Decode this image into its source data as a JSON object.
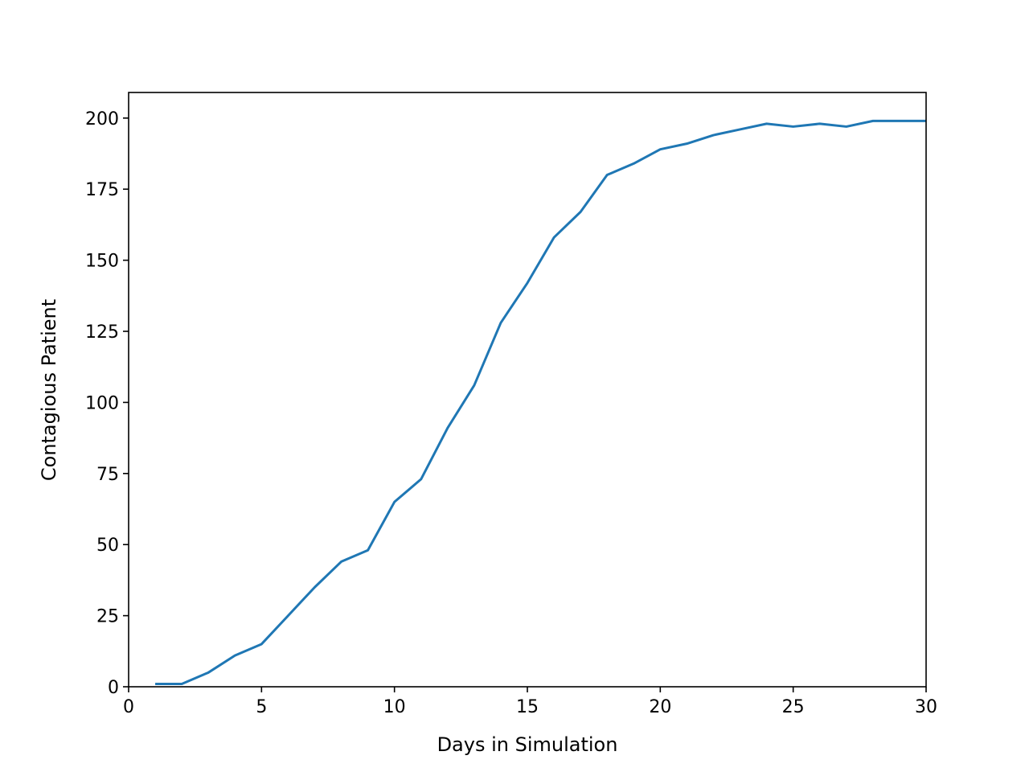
{
  "chart_data": {
    "type": "line",
    "title": "",
    "xlabel": "Days in Simulation",
    "ylabel": "Contagious Patient",
    "xlim": [
      0,
      30
    ],
    "ylim": [
      0,
      209
    ],
    "xticks": [
      0,
      5,
      10,
      15,
      20,
      25,
      30
    ],
    "yticks": [
      0,
      25,
      50,
      75,
      100,
      125,
      150,
      175,
      200
    ],
    "grid": false,
    "series": [
      {
        "color": "#1f77b4",
        "x": [
          1,
          2,
          3,
          4,
          5,
          6,
          7,
          8,
          9,
          10,
          11,
          12,
          13,
          14,
          15,
          16,
          17,
          18,
          19,
          20,
          21,
          22,
          23,
          24,
          25,
          26,
          27,
          28,
          29,
          30
        ],
        "y": [
          1,
          1,
          5,
          11,
          15,
          25,
          35,
          44,
          48,
          65,
          73,
          91,
          106,
          128,
          142,
          158,
          167,
          180,
          184,
          189,
          191,
          194,
          196,
          198,
          197,
          198,
          197,
          199,
          199,
          199
        ]
      }
    ]
  }
}
